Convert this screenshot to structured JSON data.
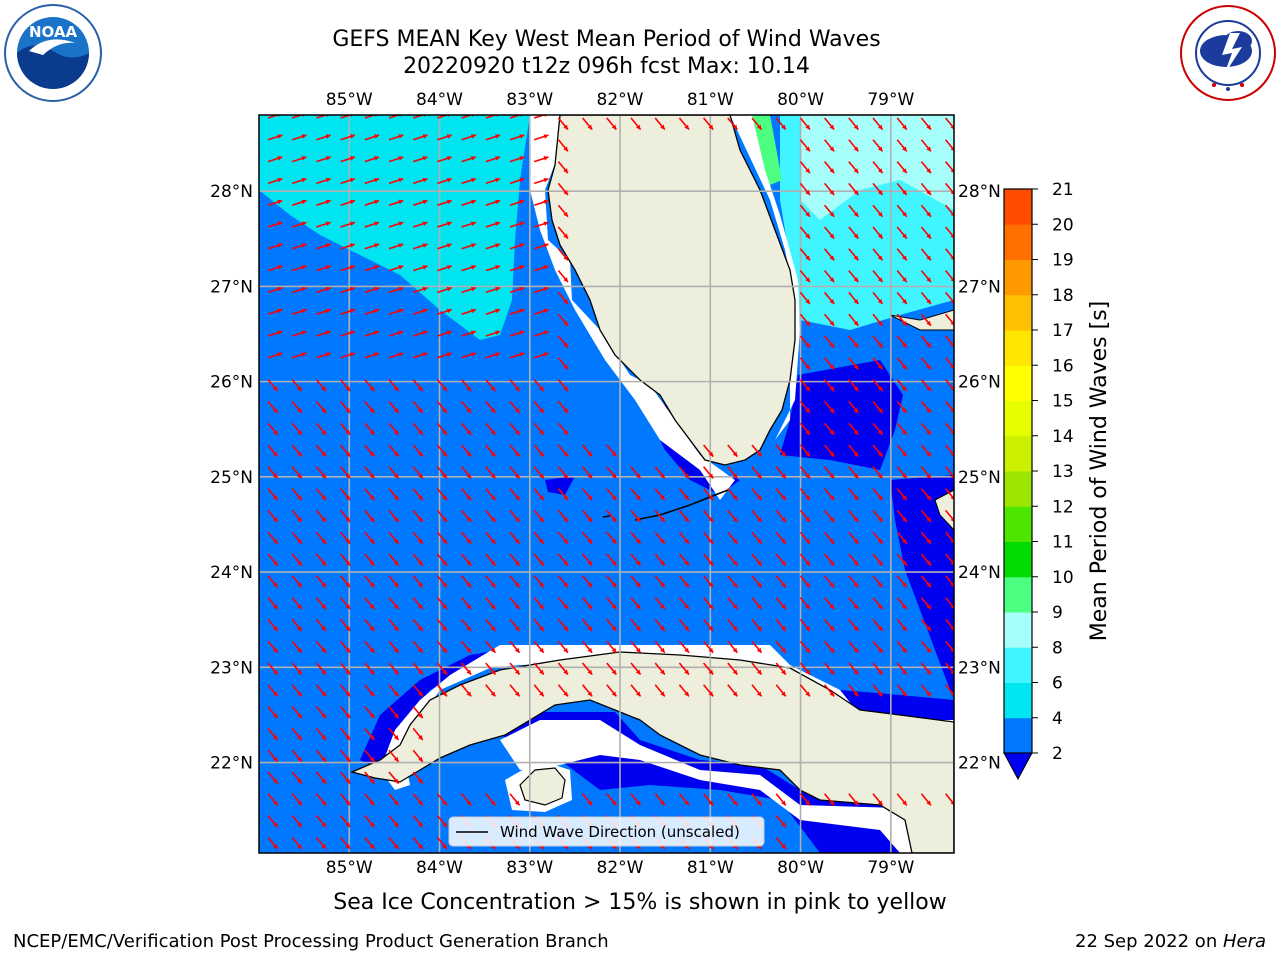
{
  "header": {
    "title_line1": "GEFS MEAN Key West Mean Period of Wind Waves",
    "title_line2": "20220920 t12z 096h fcst   Max: 10.14"
  },
  "logos": {
    "left": {
      "text": "NOAA",
      "ring_text": "NATIONAL OCEANIC AND ATMOSPHERIC ADMINISTRATION · U.S. DEPARTMENT OF COMMERCE"
    },
    "right": {
      "ring_text": "NATIONAL WEATHER SERVICE"
    }
  },
  "map": {
    "lon_ticks": [
      "85°W",
      "84°W",
      "83°W",
      "82°W",
      "81°W",
      "80°W",
      "79°W"
    ],
    "lat_ticks": [
      "28°N",
      "27°N",
      "26°N",
      "25°N",
      "24°N",
      "23°N",
      "22°N"
    ],
    "lon_values": [
      -85,
      -84,
      -83,
      -82,
      -81,
      -80,
      -79
    ],
    "lat_values": [
      28,
      27,
      26,
      25,
      24,
      23,
      22
    ],
    "extent": {
      "lon": [
        -86,
        -78.3
      ],
      "lat": [
        21.05,
        28.8
      ]
    },
    "legend_label": "Wind Wave Direction (unscaled)",
    "arrow_color": "#ff0000",
    "land_color": "#eeeedd"
  },
  "colorbar": {
    "label": "Mean Period of Wind Waves [s]",
    "ticks": [
      "2",
      "4",
      "6",
      "8",
      "9",
      "10",
      "11",
      "12",
      "13",
      "14",
      "15",
      "16",
      "17",
      "18",
      "19",
      "20",
      "21"
    ],
    "colors": [
      "#0078ff",
      "#00e6f0",
      "#40f5ff",
      "#a6fffa",
      "#4dff80",
      "#00dc00",
      "#4ce600",
      "#9de600",
      "#ccf000",
      "#e6ff00",
      "#ffff00",
      "#ffe600",
      "#ffc000",
      "#ff9900",
      "#ff7000",
      "#ff4d00",
      "#ff0000"
    ],
    "under_color": "#0000f0"
  },
  "caption": "Sea Ice Concentration > 15% is shown in pink to yellow",
  "footer": {
    "left": "NCEP/EMC/Verification Post Processing Product Generation Branch",
    "right_date": "22 Sep 2022 on ",
    "right_host": "Hera"
  }
}
